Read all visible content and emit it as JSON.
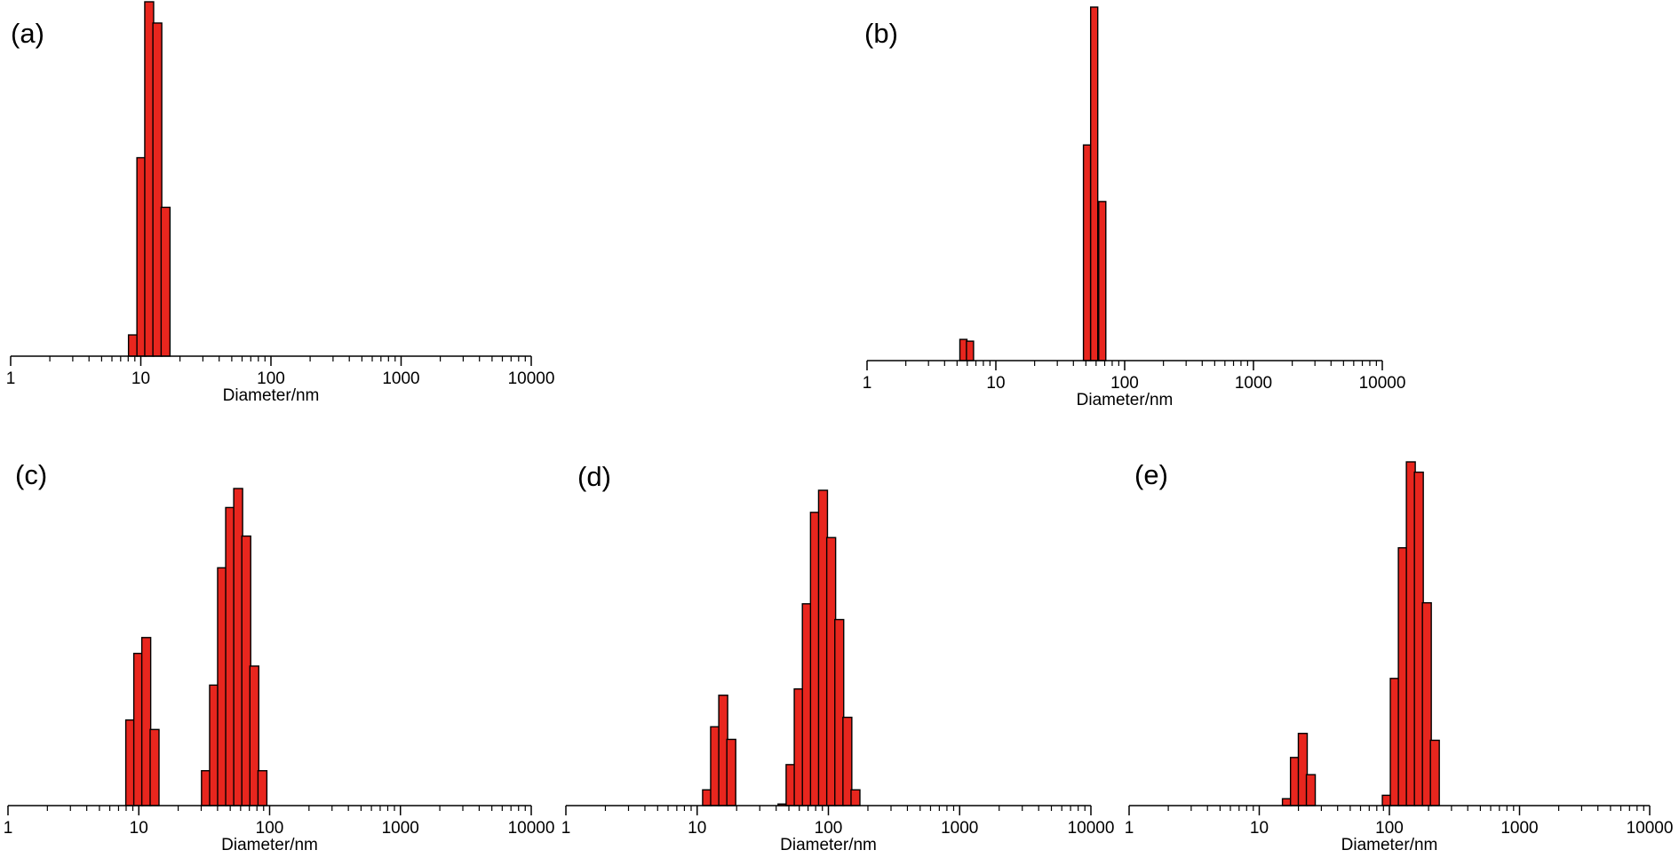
{
  "colors": {
    "bar_fill": "#e8261e",
    "bar_stroke": "#000000",
    "axis": "#000000"
  },
  "chart_data": [
    {
      "panel_label": "(a)",
      "type": "bar",
      "x_scale": "log",
      "xlim": [
        1,
        10000
      ],
      "xticks": [
        "1",
        "10",
        "100",
        "1000",
        "10000"
      ],
      "xlabel": "Diameter/nm",
      "y_axis_shown": false,
      "bars": [
        {
          "x": 8.7,
          "y": 0.06
        },
        {
          "x": 10.1,
          "y": 0.56
        },
        {
          "x": 11.6,
          "y": 1.0
        },
        {
          "x": 13.4,
          "y": 0.94
        },
        {
          "x": 15.5,
          "y": 0.42
        }
      ]
    },
    {
      "panel_label": "(b)",
      "type": "bar",
      "x_scale": "log",
      "xlim": [
        1,
        10000
      ],
      "xticks": [
        "1",
        "10",
        "100",
        "1000",
        "10000"
      ],
      "xlabel": "Diameter/nm",
      "y_axis_shown": false,
      "bars": [
        {
          "x": 5.6,
          "y": 0.06
        },
        {
          "x": 6.3,
          "y": 0.055
        },
        {
          "x": 51,
          "y": 0.61
        },
        {
          "x": 58,
          "y": 1.0
        },
        {
          "x": 67,
          "y": 0.45
        }
      ]
    },
    {
      "panel_label": "(c)",
      "type": "bar",
      "x_scale": "log",
      "xlim": [
        1,
        10000
      ],
      "xticks": [
        "1",
        "10",
        "100",
        "1000",
        "10000"
      ],
      "xlabel": "Diameter/nm",
      "y_axis_shown": false,
      "bars": [
        {
          "x": 8.6,
          "y": 0.27
        },
        {
          "x": 9.9,
          "y": 0.48
        },
        {
          "x": 11.4,
          "y": 0.53
        },
        {
          "x": 13.2,
          "y": 0.24
        },
        {
          "x": 32.6,
          "y": 0.11
        },
        {
          "x": 37.6,
          "y": 0.38
        },
        {
          "x": 43.3,
          "y": 0.75
        },
        {
          "x": 49.9,
          "y": 0.94
        },
        {
          "x": 57.5,
          "y": 1.0
        },
        {
          "x": 66.3,
          "y": 0.85
        },
        {
          "x": 76.4,
          "y": 0.44
        },
        {
          "x": 88.1,
          "y": 0.11
        }
      ]
    },
    {
      "panel_label": "(d)",
      "type": "bar",
      "x_scale": "log",
      "xlim": [
        1,
        10000
      ],
      "xticks": [
        "1",
        "10",
        "100",
        "1000",
        "10000"
      ],
      "xlabel": "Diameter/nm",
      "y_axis_shown": false,
      "bars": [
        {
          "x": 11.9,
          "y": 0.05
        },
        {
          "x": 13.7,
          "y": 0.25
        },
        {
          "x": 15.8,
          "y": 0.35
        },
        {
          "x": 18.2,
          "y": 0.21
        },
        {
          "x": 44.7,
          "y": 0.005
        },
        {
          "x": 51.5,
          "y": 0.13
        },
        {
          "x": 59.4,
          "y": 0.37
        },
        {
          "x": 68.5,
          "y": 0.64
        },
        {
          "x": 79,
          "y": 0.93
        },
        {
          "x": 91,
          "y": 1.0
        },
        {
          "x": 105,
          "y": 0.85
        },
        {
          "x": 121,
          "y": 0.59
        },
        {
          "x": 139.5,
          "y": 0.28
        },
        {
          "x": 160.8,
          "y": 0.05
        }
      ]
    },
    {
      "panel_label": "(e)",
      "type": "bar",
      "x_scale": "log",
      "xlim": [
        1,
        10000
      ],
      "xticks": [
        "1",
        "10",
        "100",
        "1000",
        "10000"
      ],
      "xlabel": "Diameter/nm",
      "y_axis_shown": false,
      "bars": [
        {
          "x": 16.3,
          "y": 0.02
        },
        {
          "x": 18.8,
          "y": 0.14
        },
        {
          "x": 21.6,
          "y": 0.21
        },
        {
          "x": 24.9,
          "y": 0.09
        },
        {
          "x": 95.5,
          "y": 0.03
        },
        {
          "x": 110,
          "y": 0.37
        },
        {
          "x": 126.8,
          "y": 0.75
        },
        {
          "x": 146.1,
          "y": 1.0
        },
        {
          "x": 168.4,
          "y": 0.97
        },
        {
          "x": 194,
          "y": 0.59
        },
        {
          "x": 223.5,
          "y": 0.19
        }
      ]
    }
  ]
}
